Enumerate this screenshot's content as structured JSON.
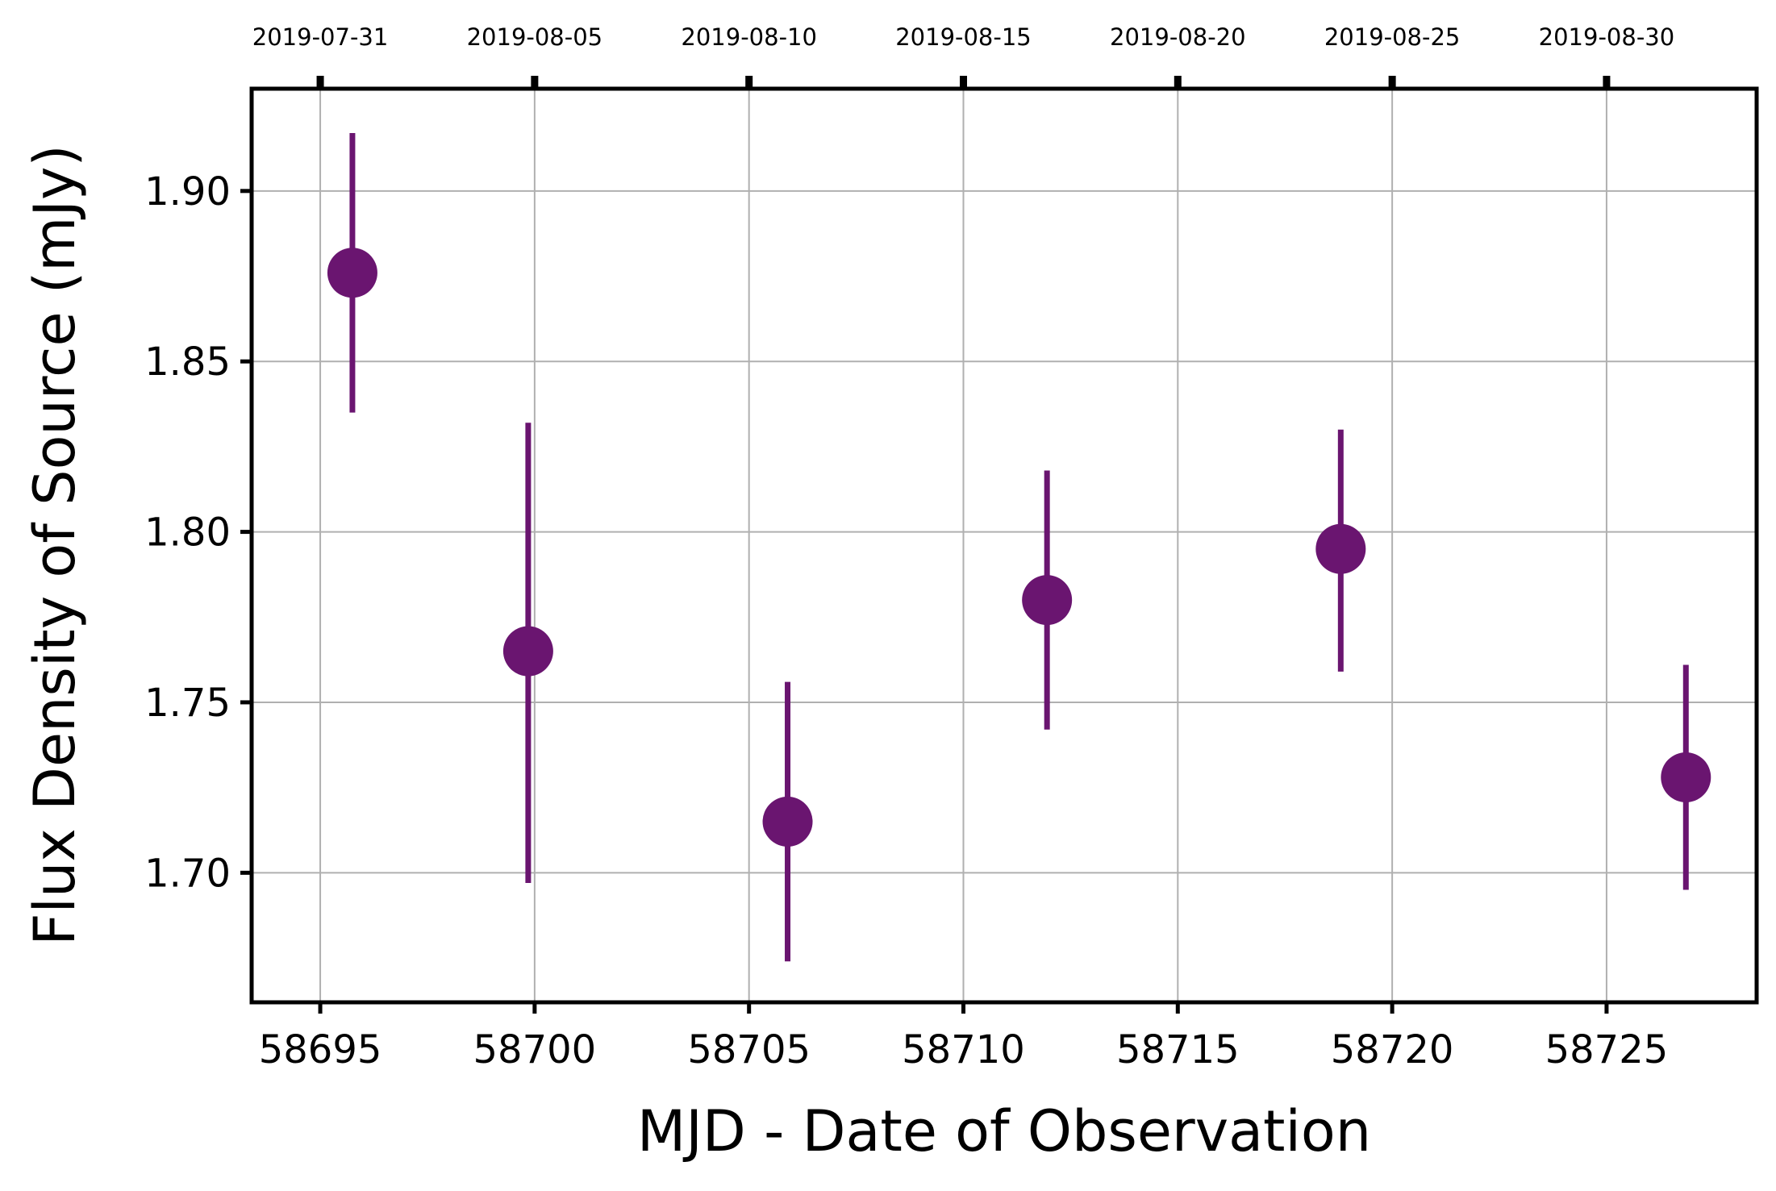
{
  "chart_data": {
    "type": "scatter",
    "title": "",
    "xlabel": "MJD - Date of Observation",
    "ylabel": "Flux Density of Source (mJy)",
    "xlim": [
      58693.4,
      58728.5
    ],
    "ylim": [
      1.662,
      1.93
    ],
    "grid": true,
    "marker_color": "#6a1570",
    "x_ticks": [
      58695,
      58700,
      58705,
      58710,
      58715,
      58720,
      58725
    ],
    "x_tick_labels": [
      "58695",
      "58700",
      "58705",
      "58710",
      "58715",
      "58720",
      "58725"
    ],
    "y_ticks": [
      1.7,
      1.75,
      1.8,
      1.85,
      1.9
    ],
    "y_tick_labels": [
      "1.70",
      "1.75",
      "1.80",
      "1.85",
      "1.90"
    ],
    "top_axis_ticks": [
      58695,
      58700,
      58705,
      58710,
      58715,
      58720,
      58725
    ],
    "top_axis_labels": [
      "2019-07-31",
      "2019-08-05",
      "2019-08-10",
      "2019-08-15",
      "2019-08-20",
      "2019-08-25",
      "2019-08-30"
    ],
    "series": [
      {
        "x": [
          58695.75,
          58699.85,
          58705.9,
          58711.95,
          58718.8,
          58726.85
        ],
        "y": [
          1.876,
          1.765,
          1.715,
          1.78,
          1.795,
          1.728
        ],
        "yerr_low": [
          0.041,
          0.068,
          0.041,
          0.038,
          0.036,
          0.033
        ],
        "yerr_high": [
          0.041,
          0.067,
          0.041,
          0.038,
          0.035,
          0.033
        ]
      }
    ]
  }
}
